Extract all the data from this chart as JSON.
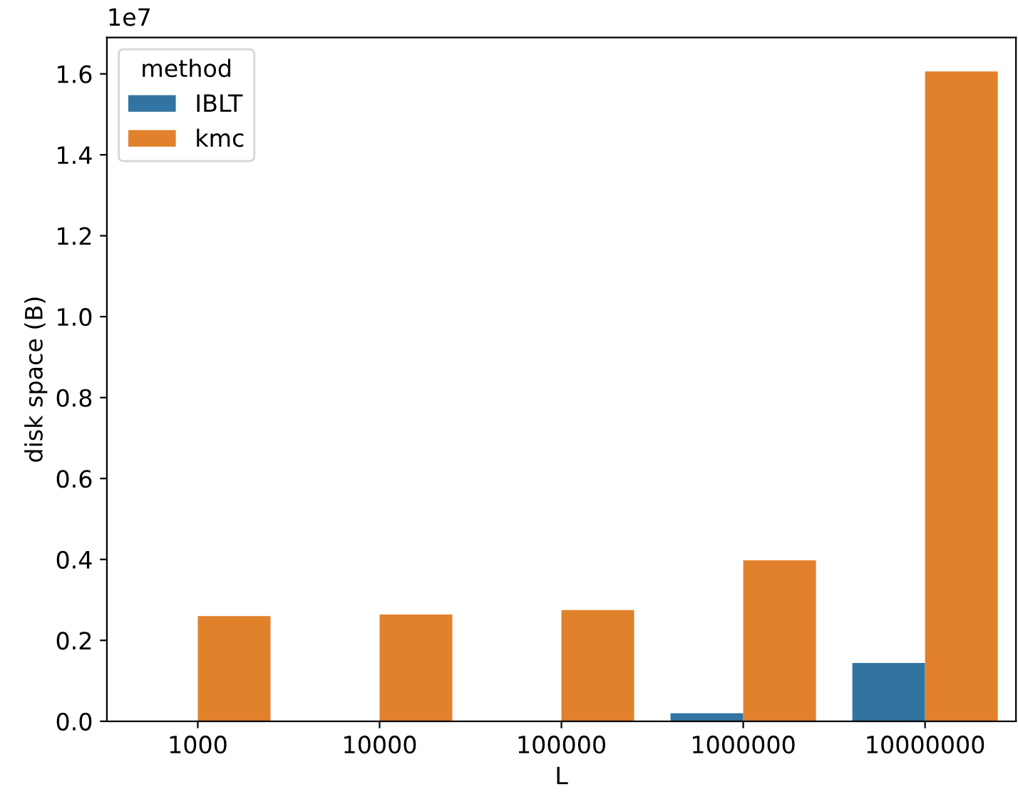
{
  "chart_data": {
    "type": "bar",
    "xlabel": "L",
    "ylabel": "disk space (B)",
    "legend_title": "method",
    "legend": "top left",
    "grid": false,
    "categories": [
      "1000",
      "10000",
      "100000",
      "1000000",
      "10000000"
    ],
    "series": [
      {
        "name": "IBLT",
        "color": "#3274a1",
        "values": [
          0,
          0,
          0,
          0.02,
          0.144
        ]
      },
      {
        "name": "kmc",
        "color": "#e1812c",
        "values": [
          0.26,
          0.264,
          0.275,
          0.398,
          1.606
        ]
      }
    ],
    "ylim": [
      0,
      1.69
    ],
    "yticks": [
      {
        "value": 0,
        "label": "0.0"
      },
      0.2,
      0.4,
      0.6,
      0.8,
      {
        "value": 1,
        "label": "1.0"
      },
      1.2,
      1.4,
      1.6
    ],
    "annotations": [
      "1e7"
    ]
  }
}
